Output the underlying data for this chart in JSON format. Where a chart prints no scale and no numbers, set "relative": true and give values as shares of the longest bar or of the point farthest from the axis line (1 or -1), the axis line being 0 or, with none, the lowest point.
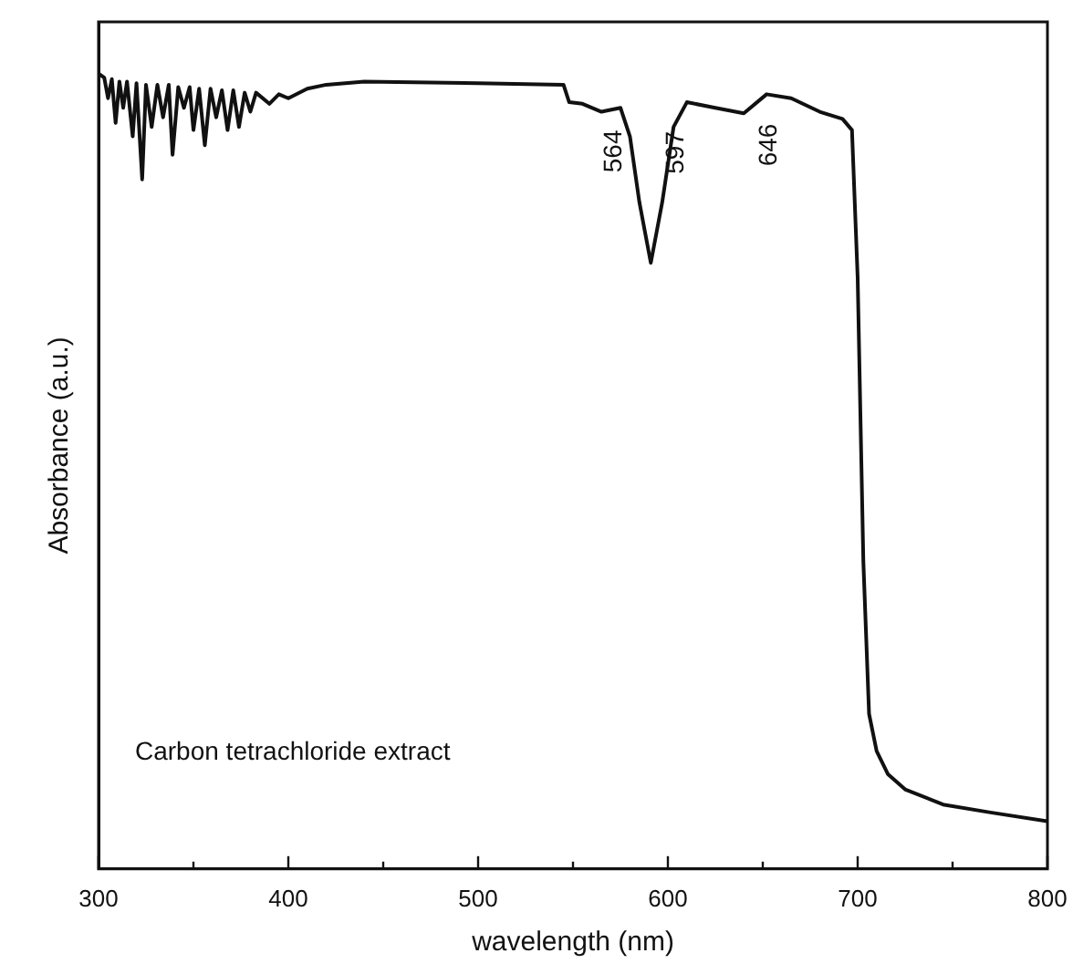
{
  "chart_data": {
    "type": "line",
    "relative": true,
    "xlabel": "wavelength (nm)",
    "ylabel": "Absorbance (a.u.)",
    "xlim": [
      300,
      800
    ],
    "xticks": [
      300,
      {
        "value": 350,
        "label": null
      },
      400,
      {
        "value": 450,
        "label": null
      },
      500,
      {
        "value": 550,
        "label": null
      },
      600,
      {
        "value": 650,
        "label": null
      },
      700,
      {
        "value": 750,
        "label": null
      },
      800
    ],
    "grid": false,
    "legend": false,
    "marker": "none",
    "line_style": "solid",
    "annotations": [
      {
        "text": "564",
        "x": 564,
        "y": 0.952
      },
      {
        "text": "597",
        "x": 597,
        "y": 0.838
      },
      {
        "text": "646",
        "x": 646,
        "y": 0.96
      },
      "Carbon tetrachloride extract"
    ],
    "series": [
      {
        "color": "#111111",
        "x": [
          300,
          303,
          305,
          307,
          309,
          311,
          313,
          315,
          318,
          320,
          323,
          325,
          328,
          331,
          334,
          337,
          339,
          342,
          345,
          348,
          350,
          353,
          356,
          359,
          362,
          365,
          368,
          371,
          374,
          377,
          380,
          383,
          390,
          395,
          400,
          410,
          420,
          440,
          500,
          545,
          548,
          555,
          565,
          575,
          580,
          585,
          591,
          597,
          603,
          610,
          625,
          640,
          652,
          665,
          680,
          692,
          697,
          700,
          703,
          706,
          710,
          716,
          725,
          745,
          770,
          800
        ],
        "values": [
          1.0,
          0.995,
          0.969,
          0.993,
          0.938,
          0.99,
          0.957,
          0.99,
          0.921,
          0.988,
          0.867,
          0.986,
          0.933,
          0.986,
          0.945,
          0.986,
          0.898,
          0.983,
          0.957,
          0.983,
          0.929,
          0.981,
          0.91,
          0.981,
          0.945,
          0.979,
          0.929,
          0.979,
          0.933,
          0.976,
          0.952,
          0.976,
          0.962,
          0.974,
          0.969,
          0.981,
          0.986,
          0.99,
          0.988,
          0.986,
          0.964,
          0.962,
          0.952,
          0.957,
          0.921,
          0.838,
          0.762,
          0.838,
          0.933,
          0.964,
          0.957,
          0.95,
          0.974,
          0.969,
          0.952,
          0.943,
          0.929,
          0.743,
          0.386,
          0.195,
          0.148,
          0.119,
          0.1,
          0.081,
          0.071,
          0.06
        ]
      }
    ]
  }
}
